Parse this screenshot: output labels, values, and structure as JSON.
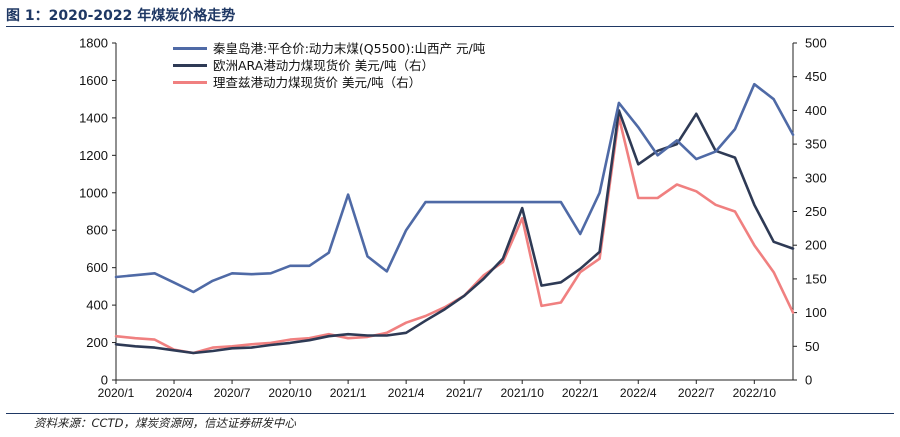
{
  "title": "图 1：2020-2022 年煤炭价格走势",
  "source_note": "资料来源：CCTD，煤炭资源网，信达证券研发中心",
  "chart_data": {
    "type": "line",
    "title": "图 1：2020-2022 年煤炭价格走势",
    "xlabel": "",
    "ylabel": "",
    "x_tick_labels": [
      "2020/1",
      "2020/4",
      "2020/7",
      "2020/10",
      "2021/1",
      "2021/4",
      "2021/7",
      "2021/10",
      "2022/1",
      "2022/4",
      "2022/7",
      "2022/10"
    ],
    "x_range": [
      "2020/1",
      "2022/12"
    ],
    "y_left": {
      "ylim": [
        0,
        1800
      ],
      "ticks": [
        0,
        200,
        400,
        600,
        800,
        1000,
        1200,
        1400,
        1600,
        1800
      ]
    },
    "y_right": {
      "ylim": [
        0,
        500
      ],
      "ticks": [
        0,
        50,
        100,
        150,
        200,
        250,
        300,
        350,
        400,
        450,
        500
      ]
    },
    "legend_position": "top-left",
    "grid": false,
    "series": [
      {
        "name": "秦皇岛港:平仓价:动力末煤(Q5500):山西产 元/吨",
        "axis": "left",
        "color": "#4f6aa6",
        "points": [
          [
            "2020/1",
            550
          ],
          [
            "2020/2",
            560
          ],
          [
            "2020/3",
            570
          ],
          [
            "2020/4",
            520
          ],
          [
            "2020/5",
            470
          ],
          [
            "2020/6",
            530
          ],
          [
            "2020/7",
            570
          ],
          [
            "2020/8",
            565
          ],
          [
            "2020/9",
            570
          ],
          [
            "2020/10",
            610
          ],
          [
            "2020/11",
            610
          ],
          [
            "2020/12",
            680
          ],
          [
            "2021/1",
            990
          ],
          [
            "2021/2",
            660
          ],
          [
            "2021/3",
            580
          ],
          [
            "2021/4",
            800
          ],
          [
            "2021/5",
            950
          ],
          [
            "2021/6",
            950
          ],
          [
            "2021/7",
            950
          ],
          [
            "2021/8",
            950
          ],
          [
            "2021/9",
            950
          ],
          [
            "2021/10",
            950
          ],
          [
            "2021/11",
            950
          ],
          [
            "2021/12",
            950
          ],
          [
            "2022/1",
            780
          ],
          [
            "2022/2",
            1000
          ],
          [
            "2022/3",
            1480
          ],
          [
            "2022/4",
            1350
          ],
          [
            "2022/5",
            1200
          ],
          [
            "2022/6",
            1280
          ],
          [
            "2022/7",
            1180
          ],
          [
            "2022/8",
            1220
          ],
          [
            "2022/9",
            1340
          ],
          [
            "2022/10",
            1580
          ],
          [
            "2022/11",
            1500
          ],
          [
            "2022/12",
            1310
          ]
        ]
      },
      {
        "name": "欧洲ARA港动力煤现货价 美元/吨（右）",
        "axis": "right",
        "color": "#2e3a55",
        "points": [
          [
            "2020/1",
            53
          ],
          [
            "2020/2",
            50
          ],
          [
            "2020/3",
            48
          ],
          [
            "2020/4",
            44
          ],
          [
            "2020/5",
            40
          ],
          [
            "2020/6",
            43
          ],
          [
            "2020/7",
            47
          ],
          [
            "2020/8",
            48
          ],
          [
            "2020/9",
            52
          ],
          [
            "2020/10",
            55
          ],
          [
            "2020/11",
            59
          ],
          [
            "2020/12",
            65
          ],
          [
            "2021/1",
            68
          ],
          [
            "2021/2",
            66
          ],
          [
            "2021/3",
            66
          ],
          [
            "2021/4",
            70
          ],
          [
            "2021/5",
            88
          ],
          [
            "2021/6",
            105
          ],
          [
            "2021/7",
            125
          ],
          [
            "2021/8",
            150
          ],
          [
            "2021/9",
            180
          ],
          [
            "2021/10",
            255
          ],
          [
            "2021/11",
            140
          ],
          [
            "2021/12",
            145
          ],
          [
            "2022/1",
            165
          ],
          [
            "2022/2",
            190
          ],
          [
            "2022/3",
            400
          ],
          [
            "2022/4",
            320
          ],
          [
            "2022/5",
            340
          ],
          [
            "2022/6",
            350
          ],
          [
            "2022/7",
            395
          ],
          [
            "2022/8",
            340
          ],
          [
            "2022/9",
            330
          ],
          [
            "2022/10",
            260
          ],
          [
            "2022/11",
            205
          ],
          [
            "2022/12",
            195
          ]
        ]
      },
      {
        "name": "理查兹港动力煤现货价 美元/吨（右）",
        "axis": "right",
        "color": "#f08080",
        "points": [
          [
            "2020/1",
            65
          ],
          [
            "2020/2",
            62
          ],
          [
            "2020/3",
            60
          ],
          [
            "2020/4",
            45
          ],
          [
            "2020/5",
            40
          ],
          [
            "2020/6",
            48
          ],
          [
            "2020/7",
            50
          ],
          [
            "2020/8",
            53
          ],
          [
            "2020/9",
            55
          ],
          [
            "2020/10",
            60
          ],
          [
            "2020/11",
            62
          ],
          [
            "2020/12",
            68
          ],
          [
            "2021/1",
            62
          ],
          [
            "2021/2",
            64
          ],
          [
            "2021/3",
            70
          ],
          [
            "2021/4",
            85
          ],
          [
            "2021/5",
            95
          ],
          [
            "2021/6",
            108
          ],
          [
            "2021/7",
            125
          ],
          [
            "2021/8",
            155
          ],
          [
            "2021/9",
            175
          ],
          [
            "2021/10",
            240
          ],
          [
            "2021/11",
            110
          ],
          [
            "2021/12",
            115
          ],
          [
            "2022/1",
            160
          ],
          [
            "2022/2",
            180
          ],
          [
            "2022/3",
            390
          ],
          [
            "2022/4",
            270
          ],
          [
            "2022/5",
            270
          ],
          [
            "2022/6",
            290
          ],
          [
            "2022/7",
            280
          ],
          [
            "2022/8",
            260
          ],
          [
            "2022/9",
            250
          ],
          [
            "2022/10",
            200
          ],
          [
            "2022/11",
            160
          ],
          [
            "2022/12",
            100
          ]
        ]
      }
    ]
  }
}
